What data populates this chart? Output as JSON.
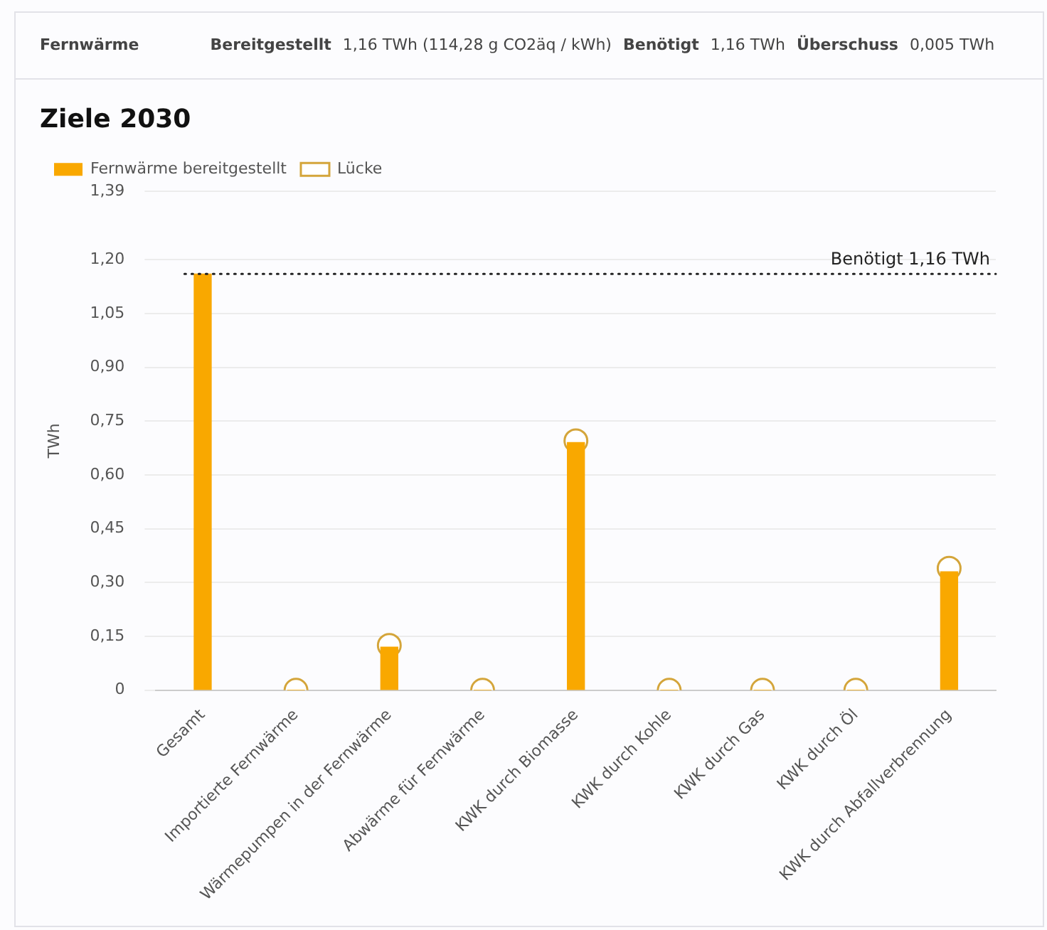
{
  "chart_data": {
    "type": "bar",
    "title": "Ziele 2030",
    "ylabel": "TWh",
    "annotations": [
      "Fernwärme",
      "Bereitgestellt",
      "1,16 TWh (114,28 g CO2äq / kWh)",
      "Benötigt",
      "1,16 TWh",
      "Überschuss",
      "0,005 TWh"
    ],
    "categories": [
      "Gesamt",
      "Importierte Fernwärme",
      "Wärmepumpen in der Fernwärme",
      "Abwärme für Fernwärme",
      "KWK durch Biomasse",
      "KWK durch Kohle",
      "KWK durch Gas",
      "KWK durch Öl",
      "KWK durch Abfallverbrennung"
    ],
    "series": [
      {
        "name": "Fernwärme bereitgestellt",
        "color": "#f9a800",
        "values": [
          1.16,
          0,
          0.12,
          0,
          0.69,
          0,
          0,
          0,
          0.33
        ]
      },
      {
        "name": "Lücke",
        "type": "scatter",
        "color": "#d4a53a",
        "values": [
          null,
          0,
          0.125,
          0,
          0.695,
          0,
          0,
          0,
          0.34
        ]
      }
    ],
    "ylim": [
      0,
      1.39
    ],
    "yticks": [
      {
        "value": 0,
        "label": "0"
      },
      {
        "value": 0.15,
        "label": "0,15"
      },
      {
        "value": 0.3,
        "label": "0,30"
      },
      {
        "value": 0.45,
        "label": "0,45"
      },
      {
        "value": 0.6,
        "label": "0,60"
      },
      {
        "value": 0.75,
        "label": "0,75"
      },
      {
        "value": 0.9,
        "label": "0,90"
      },
      {
        "value": 1.05,
        "label": "1,05"
      },
      {
        "value": 1.2,
        "label": "1,20"
      },
      {
        "value": 1.39,
        "label": "1,39"
      }
    ],
    "ref_lines": [
      {
        "axis": "y",
        "value": 1.16,
        "label": "Benötigt 1,16 TWh",
        "line_style": "dotted",
        "color": "#222222"
      }
    ],
    "grid": "y",
    "legend": "top left",
    "marker": "circle"
  }
}
